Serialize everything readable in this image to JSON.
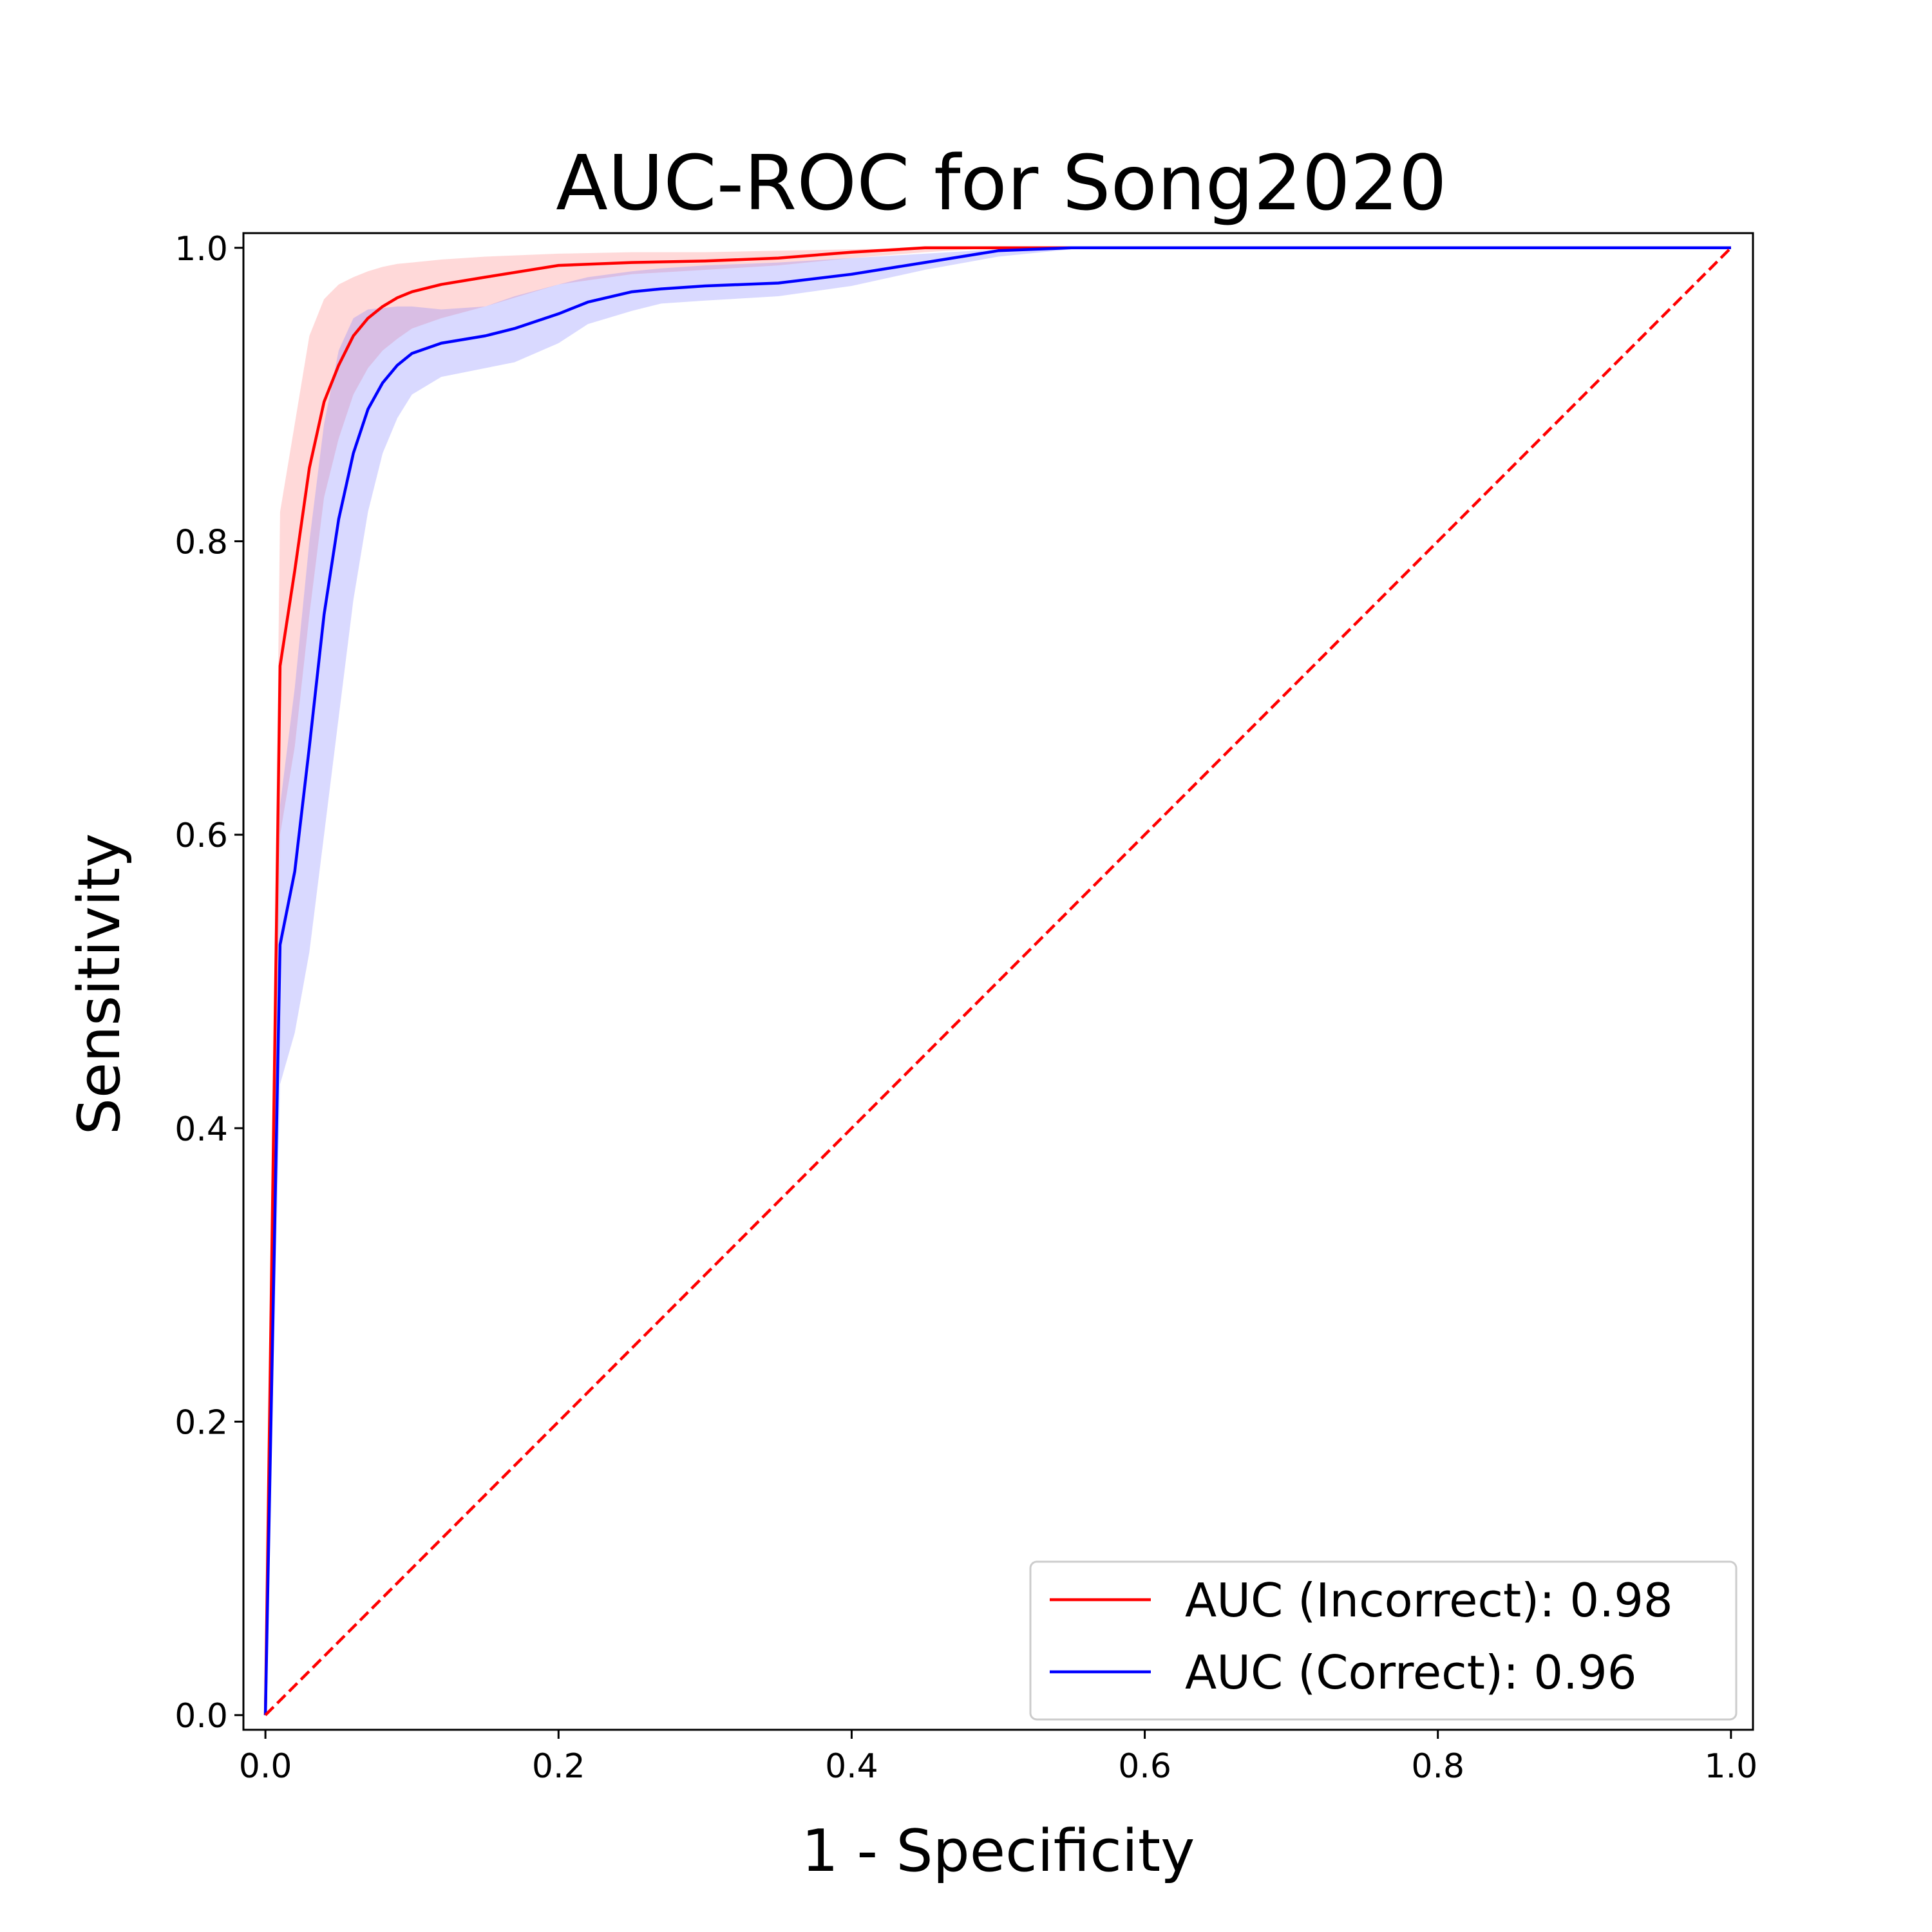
{
  "chart_data": {
    "type": "line",
    "title": "AUC-ROC for Song2020",
    "xlabel": "1 - Specificity",
    "ylabel": "Sensitivity",
    "xlim": [
      -0.015,
      1.015
    ],
    "ylim": [
      -0.01,
      1.01
    ],
    "xticks": [
      0.0,
      0.2,
      0.4,
      0.6,
      0.8,
      1.0
    ],
    "xtick_labels": [
      "0.0",
      "0.2",
      "0.4",
      "0.6",
      "0.8",
      "1.0"
    ],
    "yticks": [
      0.0,
      0.2,
      0.4,
      0.6,
      0.8,
      1.0
    ],
    "ytick_labels": [
      "0.0",
      "0.2",
      "0.4",
      "0.6",
      "0.8",
      "1.0"
    ],
    "grid": false,
    "legend_position": "bottom-right",
    "series": [
      {
        "name": "AUC  (Incorrect): 0.98",
        "color": "#ff0000",
        "band_color": "#ff8080",
        "x": [
          0.0,
          0.01,
          0.02,
          0.03,
          0.04,
          0.05,
          0.06,
          0.07,
          0.08,
          0.09,
          0.1,
          0.12,
          0.15,
          0.2,
          0.25,
          0.3,
          0.35,
          0.4,
          0.45,
          0.5,
          0.55,
          0.6,
          1.0
        ],
        "y": [
          0.0,
          0.715,
          0.78,
          0.85,
          0.895,
          0.92,
          0.94,
          0.952,
          0.96,
          0.966,
          0.97,
          0.975,
          0.98,
          0.988,
          0.99,
          0.991,
          0.993,
          0.997,
          1.0,
          1.0,
          1.0,
          1.0,
          1.0
        ],
        "lower": [
          0.0,
          0.6,
          0.66,
          0.75,
          0.83,
          0.87,
          0.9,
          0.918,
          0.93,
          0.938,
          0.945,
          0.952,
          0.96,
          0.975,
          0.982,
          0.985,
          0.988,
          0.993,
          0.997,
          1.0,
          1.0,
          1.0,
          1.0
        ],
        "upper": [
          0.0,
          0.82,
          0.88,
          0.94,
          0.965,
          0.975,
          0.98,
          0.984,
          0.987,
          0.989,
          0.99,
          0.992,
          0.994,
          0.996,
          0.997,
          0.997,
          0.998,
          0.999,
          1.0,
          1.0,
          1.0,
          1.0,
          1.0
        ]
      },
      {
        "name": "AUC  (Correct): 0.96",
        "color": "#0000ff",
        "band_color": "#8080ff",
        "x": [
          0.0,
          0.01,
          0.02,
          0.03,
          0.04,
          0.05,
          0.06,
          0.07,
          0.08,
          0.09,
          0.1,
          0.12,
          0.15,
          0.17,
          0.2,
          0.22,
          0.25,
          0.27,
          0.3,
          0.35,
          0.4,
          0.45,
          0.5,
          0.55,
          0.6,
          1.0
        ],
        "y": [
          0.0,
          0.525,
          0.575,
          0.66,
          0.75,
          0.815,
          0.86,
          0.89,
          0.908,
          0.92,
          0.928,
          0.935,
          0.94,
          0.945,
          0.955,
          0.963,
          0.97,
          0.972,
          0.974,
          0.976,
          0.982,
          0.99,
          0.998,
          1.0,
          1.0,
          1.0
        ],
        "lower": [
          0.0,
          0.43,
          0.465,
          0.52,
          0.6,
          0.68,
          0.76,
          0.82,
          0.86,
          0.884,
          0.9,
          0.912,
          0.918,
          0.922,
          0.935,
          0.948,
          0.957,
          0.962,
          0.964,
          0.967,
          0.974,
          0.985,
          0.994,
          0.999,
          1.0,
          1.0
        ],
        "upper": [
          0.0,
          0.62,
          0.7,
          0.8,
          0.88,
          0.93,
          0.952,
          0.958,
          0.959,
          0.96,
          0.96,
          0.958,
          0.96,
          0.967,
          0.975,
          0.98,
          0.984,
          0.986,
          0.988,
          0.99,
          0.993,
          0.996,
          0.999,
          1.0,
          1.0,
          1.0
        ]
      },
      {
        "name": "",
        "color": "#ff0000",
        "dashed": true,
        "x": [
          0.0,
          1.0
        ],
        "y": [
          0.0,
          1.0
        ]
      }
    ]
  }
}
